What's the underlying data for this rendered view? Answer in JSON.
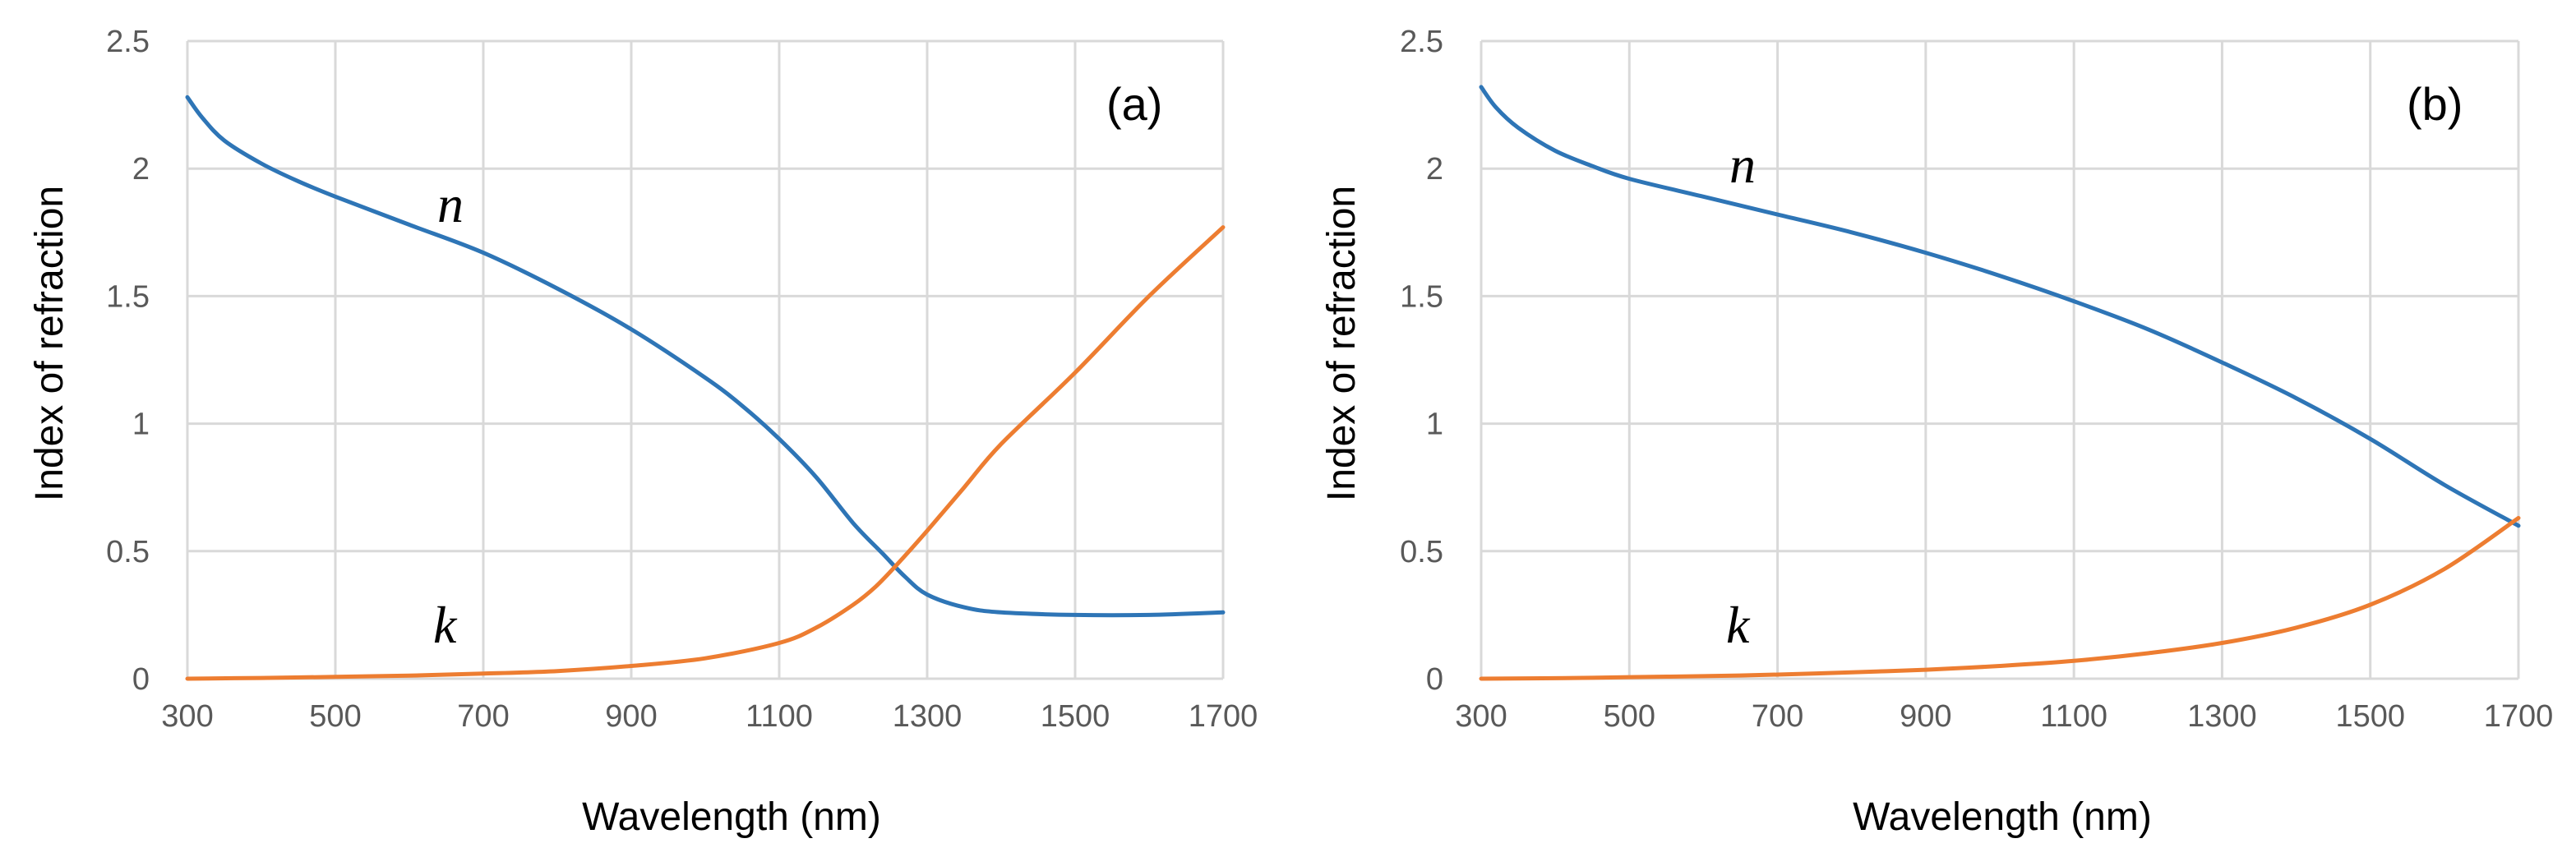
{
  "chart_data": [
    {
      "type": "line",
      "panel_label": "(a)",
      "xlabel": "Wavelength (nm)",
      "ylabel": "Index of refraction",
      "xlim": [
        300,
        1700
      ],
      "ylim": [
        0,
        2.5
      ],
      "xticks": [
        300,
        500,
        700,
        900,
        1100,
        1300,
        1500,
        1700
      ],
      "yticks": [
        0,
        0.5,
        1,
        1.5,
        2,
        2.5
      ],
      "ytick_labels": [
        "0",
        "0.5",
        "1",
        "1.5",
        "2",
        "2.5"
      ],
      "grid": true,
      "annotations": [
        {
          "text": "n",
          "x": 650,
          "y": 1.82
        },
        {
          "text": "k",
          "x": 640,
          "y": 0.16
        }
      ],
      "series": [
        {
          "name": "n",
          "color": "#2e75b6",
          "x": [
            300,
            320,
            350,
            400,
            450,
            500,
            600,
            700,
            800,
            900,
            1000,
            1050,
            1100,
            1150,
            1200,
            1240,
            1270,
            1300,
            1350,
            1400,
            1500,
            1600,
            1700
          ],
          "y": [
            2.28,
            2.2,
            2.11,
            2.02,
            1.95,
            1.89,
            1.78,
            1.67,
            1.53,
            1.37,
            1.18,
            1.07,
            0.94,
            0.79,
            0.61,
            0.49,
            0.4,
            0.33,
            0.28,
            0.26,
            0.25,
            0.25,
            0.26
          ]
        },
        {
          "name": "k",
          "color": "#ed7d31",
          "x": [
            300,
            400,
            500,
            600,
            700,
            800,
            900,
            1000,
            1100,
            1150,
            1200,
            1230,
            1260,
            1300,
            1350,
            1400,
            1500,
            1600,
            1700
          ],
          "y": [
            0.0,
            0.003,
            0.007,
            0.012,
            0.02,
            0.03,
            0.05,
            0.08,
            0.14,
            0.2,
            0.29,
            0.36,
            0.45,
            0.58,
            0.75,
            0.92,
            1.2,
            1.5,
            1.77
          ]
        }
      ]
    },
    {
      "type": "line",
      "panel_label": "(b)",
      "xlabel": "Wavelength (nm)",
      "ylabel": "Index of refraction",
      "xlim": [
        300,
        1700
      ],
      "ylim": [
        0,
        2.5
      ],
      "xticks": [
        300,
        500,
        700,
        900,
        1100,
        1300,
        1500,
        1700
      ],
      "yticks": [
        0,
        0.5,
        1,
        1.5,
        2,
        2.5
      ],
      "ytick_labels": [
        "0",
        "0.5",
        "1",
        "1.5",
        "2",
        "2.5"
      ],
      "grid": true,
      "annotations": [
        {
          "text": "n",
          "x": 650,
          "y": 1.98
        },
        {
          "text": "k",
          "x": 640,
          "y": 0.16
        }
      ],
      "series": [
        {
          "name": "n",
          "color": "#2e75b6",
          "x": [
            300,
            320,
            350,
            400,
            450,
            500,
            600,
            700,
            800,
            900,
            1000,
            1100,
            1200,
            1300,
            1400,
            1500,
            1600,
            1700
          ],
          "y": [
            2.32,
            2.24,
            2.16,
            2.07,
            2.01,
            1.96,
            1.89,
            1.82,
            1.75,
            1.67,
            1.58,
            1.48,
            1.37,
            1.24,
            1.1,
            0.94,
            0.76,
            0.6
          ]
        },
        {
          "name": "k",
          "color": "#ed7d31",
          "x": [
            300,
            400,
            500,
            600,
            700,
            800,
            900,
            1000,
            1100,
            1200,
            1300,
            1400,
            1500,
            1600,
            1700
          ],
          "y": [
            0.0,
            0.002,
            0.006,
            0.01,
            0.016,
            0.025,
            0.035,
            0.05,
            0.07,
            0.1,
            0.14,
            0.2,
            0.29,
            0.43,
            0.63
          ]
        }
      ]
    }
  ]
}
